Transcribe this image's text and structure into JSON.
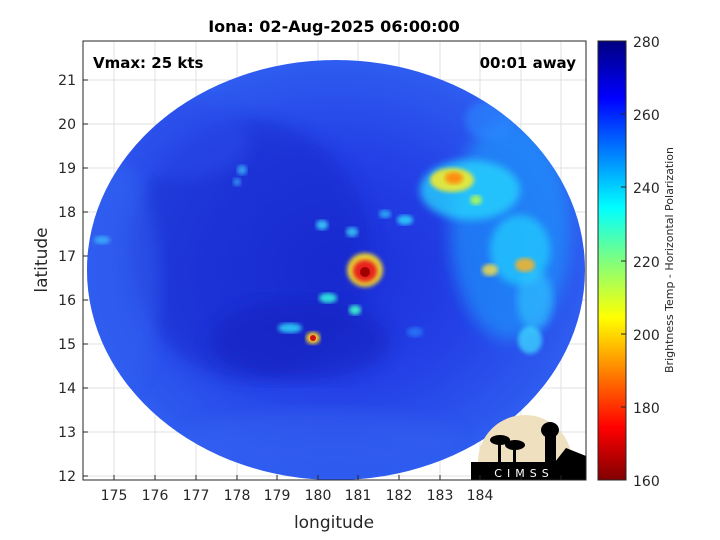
{
  "title": "Iona: 02-Aug-2025 06:00:00",
  "vmax_label": "Vmax: 25 kts",
  "away_label": "00:01 away",
  "xlabel": "longitude",
  "ylabel": "latitude",
  "xticks": [
    "175",
    "176",
    "177",
    "178",
    "179",
    "180",
    "181",
    "182",
    "183",
    "184"
  ],
  "yticks": [
    "12",
    "13",
    "14",
    "15",
    "16",
    "17",
    "18",
    "19",
    "20",
    "21"
  ],
  "colorbar": {
    "label": "Brightness Temp - Horizontal Polarization",
    "ticks": [
      "160",
      "180",
      "200",
      "220",
      "240",
      "260",
      "280"
    ],
    "min": 160,
    "max": 280
  },
  "logo_text": "CIMSS",
  "colors": {
    "background": "#2a48e6",
    "warm_core": "#e8201a"
  }
}
